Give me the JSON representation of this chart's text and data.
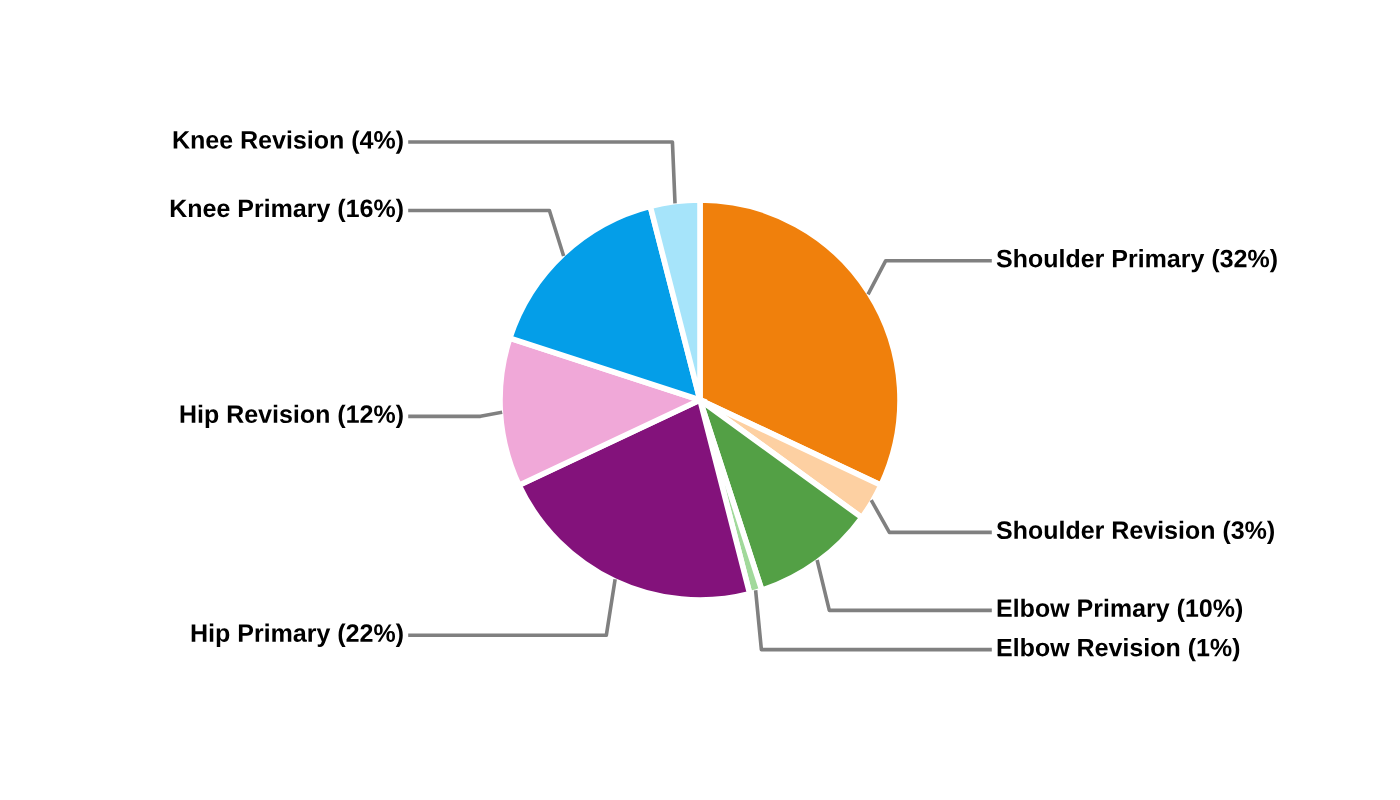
{
  "chart_data": {
    "type": "pie",
    "categories": [
      "Shoulder Primary",
      "Shoulder Revision",
      "Elbow Primary",
      "Elbow Revision",
      "Hip Primary",
      "Hip Revision",
      "Knee Primary",
      "Knee Revision"
    ],
    "values": [
      32,
      3,
      10,
      1,
      22,
      12,
      16,
      4
    ],
    "value_labels": [
      "(32%)",
      "(3%)",
      "(10%)",
      "(1%)",
      "(22%)",
      "(12%)",
      "(16%)",
      "(4%)"
    ],
    "colors": [
      "#f0800c",
      "#fdd0a2",
      "#53a045",
      "#a1d99b",
      "#83127b",
      "#f0a8d8",
      "#049ee8",
      "#a6e4fa"
    ]
  }
}
